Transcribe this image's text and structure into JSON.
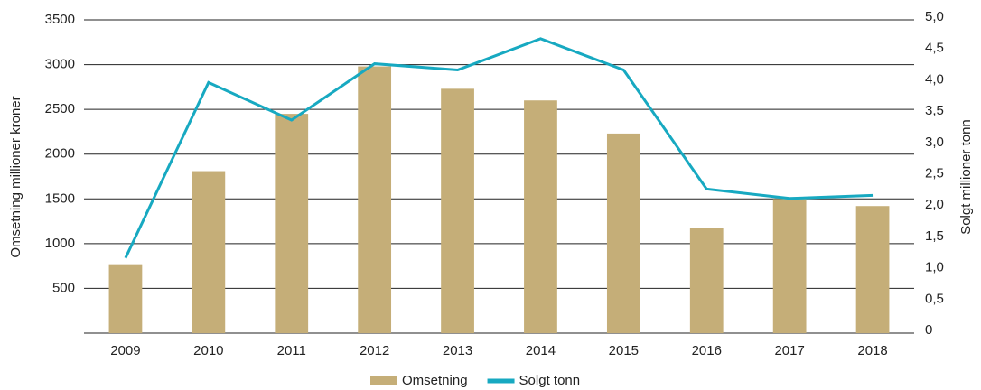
{
  "chart_data": {
    "type": "bar_line",
    "categories": [
      "2009",
      "2010",
      "2011",
      "2012",
      "2013",
      "2014",
      "2015",
      "2016",
      "2017",
      "2018"
    ],
    "series": [
      {
        "name": "Omsetning",
        "type": "bar",
        "color": "#c5ae78",
        "values": [
          770,
          1810,
          2450,
          2980,
          2730,
          2600,
          2230,
          1170,
          1500,
          1420
        ]
      },
      {
        "name": "Solgt tonn",
        "type": "line",
        "color": "#17a9c1",
        "axis": "y2",
        "values": [
          1.2,
          4.0,
          3.4,
          4.3,
          4.2,
          4.7,
          4.2,
          2.3,
          2.15,
          2.2
        ]
      }
    ],
    "y_label": "Omsetning millioner kroner",
    "y2_label": "Solgt millioner tonn",
    "ylim": [
      0,
      3500
    ],
    "yticks": [
      500,
      1000,
      1500,
      2000,
      2500,
      3000,
      3500
    ],
    "y2lim": [
      0,
      5
    ],
    "y2ticks": [
      0,
      {
        "value": 0.5,
        "label": "0,5"
      },
      {
        "value": 1,
        "label": "1,0"
      },
      {
        "value": 1.5,
        "label": "1,5"
      },
      {
        "value": 2,
        "label": "2,0"
      },
      {
        "value": 2.5,
        "label": "2,5"
      },
      {
        "value": 3,
        "label": "3,0"
      },
      {
        "value": 3.5,
        "label": "3,5"
      },
      {
        "value": 4,
        "label": "4,0"
      },
      {
        "value": 4.5,
        "label": "4,5"
      },
      {
        "value": 5,
        "label": "5,0"
      }
    ],
    "grid": true,
    "legend": "bottom"
  }
}
